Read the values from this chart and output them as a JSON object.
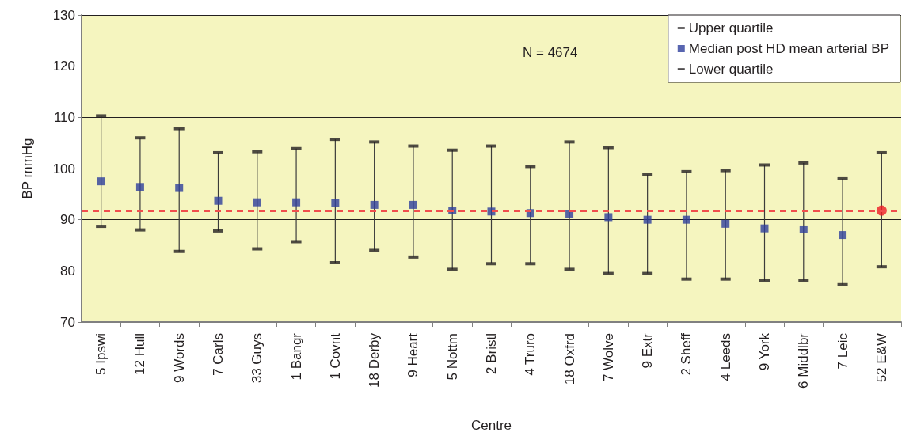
{
  "chart_data": {
    "type": "scatter",
    "xlabel": "Centre",
    "ylabel": "BP mmHg",
    "categories": [
      "5 Ipswi",
      "12 Hull",
      "9 Words",
      "7 Carls",
      "33 Guys",
      "1 Bangr",
      "1 Covnt",
      "18 Derby",
      "9 Heart",
      "5 Nottm",
      "2 Bristl",
      "4 Truro",
      "18 Oxfrd",
      "7 Wolve",
      "9 Extr",
      "2 Sheff",
      "4 Leeds",
      "9 York",
      "6 Middlbr",
      "7 Leic",
      "52 E&W"
    ],
    "series": [
      {
        "name": "Upper quartile",
        "color": "#231f20",
        "values": [
          110.3,
          106,
          107.8,
          103.1,
          103.3,
          103.9,
          105.7,
          105.2,
          104.4,
          103.6,
          104.4,
          100.4,
          105.2,
          104.1,
          98.8,
          99.4,
          99.6,
          100.7,
          101.1,
          98,
          103.1
        ]
      },
      {
        "name": "Median post HD mean arterial BP",
        "color": "#2e3f9c",
        "marker": "square",
        "values": [
          97.5,
          96.4,
          96.2,
          93.7,
          93.4,
          93.4,
          93.2,
          92.9,
          92.9,
          91.8,
          91.6,
          91.3,
          91.1,
          90.5,
          90,
          90,
          89.2,
          88.3,
          88.1,
          87,
          null
        ]
      },
      {
        "name": "Lower quartile",
        "color": "#231f20",
        "values": [
          88.7,
          88,
          83.8,
          87.8,
          84.3,
          85.7,
          81.6,
          84,
          82.7,
          80.3,
          81.4,
          81.4,
          80.3,
          79.5,
          79.5,
          78.4,
          78.4,
          78.1,
          78.1,
          77.3,
          80.8
        ]
      },
      {
        "color": "#ed1c24",
        "marker": "circle",
        "x": [
          "52 E&W"
        ],
        "values": [
          91.8
        ]
      }
    ],
    "ylim": [
      70,
      130
    ],
    "yticks": [
      70,
      80,
      90,
      100,
      110,
      120,
      130
    ],
    "grid": "y",
    "legend": "top right",
    "ref_lines": [
      {
        "axis": "y",
        "value": 91.7,
        "color": "#f04e4e",
        "line_style": "dashed"
      }
    ],
    "annotations": [
      "N = 4674"
    ]
  }
}
